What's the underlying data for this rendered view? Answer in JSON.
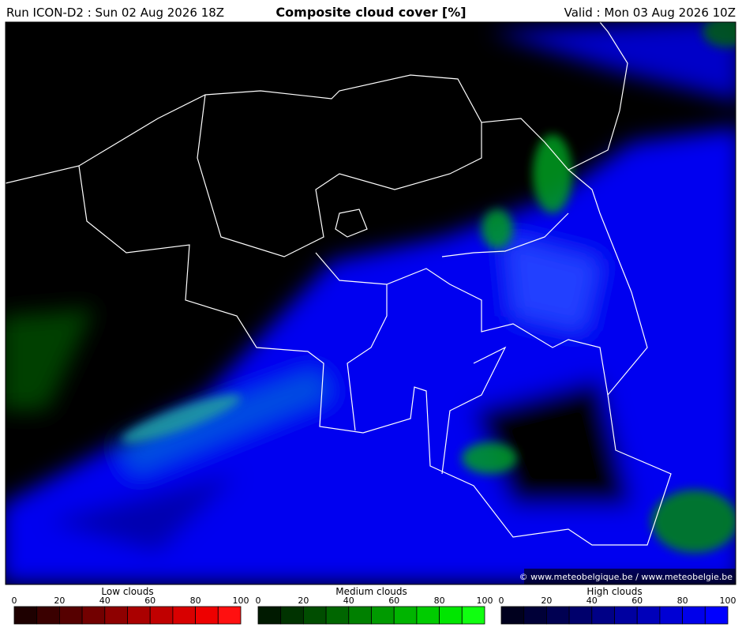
{
  "header": {
    "run": "Run ICON-D2 : Sun 02 Aug 2026 18Z",
    "title": "Composite cloud cover [%]",
    "valid": "Valid : Mon 03 Aug 2026 10Z"
  },
  "map": {
    "credit": "© www.meteobelgique.be / www.meteobelgie.be"
  },
  "legends": [
    {
      "label": "Low clouds",
      "ticks": [
        0,
        20,
        40,
        60,
        80,
        100
      ],
      "colors": [
        "#1e0000",
        "#3a0000",
        "#560000",
        "#720000",
        "#8e0000",
        "#aa0000",
        "#c00000",
        "#d80000",
        "#ee0000",
        "#ff1010"
      ]
    },
    {
      "label": "Medium clouds",
      "ticks": [
        0,
        20,
        40,
        60,
        80,
        100
      ],
      "colors": [
        "#001a00",
        "#003300",
        "#004d00",
        "#006600",
        "#008000",
        "#009a00",
        "#00b400",
        "#00cc00",
        "#00e600",
        "#10ff10"
      ]
    },
    {
      "label": "High clouds",
      "ticks": [
        0,
        20,
        40,
        60,
        80,
        100
      ],
      "colors": [
        "#00001e",
        "#000038",
        "#000052",
        "#00006c",
        "#000086",
        "#0000a0",
        "#0000ba",
        "#0000d4",
        "#0000ea",
        "#0000ff"
      ]
    }
  ]
}
